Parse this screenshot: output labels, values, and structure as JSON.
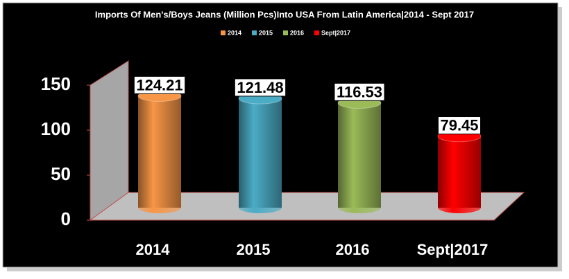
{
  "chart_data": {
    "type": "bar",
    "title": "Imports Of Men's/Boys Jeans (Million Pcs)Into USA From Latin America|2014 - Sept 2017",
    "categories": [
      "2014",
      "2015",
      "2016",
      "Sept|2017"
    ],
    "values": [
      124.21,
      121.48,
      116.53,
      79.45
    ],
    "colors": [
      "#f79646",
      "#4bacc6",
      "#9bbb59",
      "#ff0000"
    ],
    "ylim": [
      0,
      150
    ],
    "yticks": [
      0,
      50,
      100,
      150
    ],
    "legend": "top"
  }
}
